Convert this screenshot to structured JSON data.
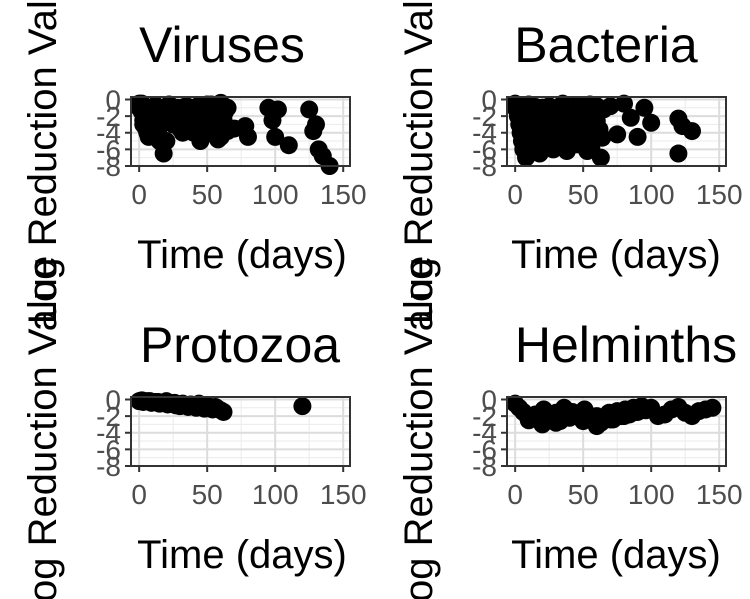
{
  "chart_data": [
    {
      "type": "scatter",
      "title": "Viruses",
      "xlabel": "Time (days)",
      "ylabel": "Log Reduction Value",
      "xlim": [
        -6,
        155
      ],
      "ylim": [
        -8,
        0.3
      ],
      "xticks": [
        0,
        50,
        100,
        150
      ],
      "yticks": [
        0,
        -2,
        -4,
        -6,
        -8
      ],
      "grid": true,
      "series": [
        {
          "x": [
            0,
            2,
            3,
            5,
            7,
            8,
            10,
            12,
            14,
            15,
            18,
            20,
            22,
            25,
            28,
            30,
            32,
            35,
            38,
            40,
            42,
            45,
            48,
            50,
            52,
            55,
            58,
            60,
            62,
            65,
            0,
            3,
            6,
            10,
            15,
            20,
            25,
            30,
            35,
            40,
            45,
            50,
            55,
            60,
            65,
            2,
            8,
            12,
            18,
            22,
            28,
            33,
            38,
            43,
            48,
            53,
            58,
            63,
            70,
            78,
            80,
            95,
            98,
            100,
            102,
            110,
            125,
            128,
            130,
            132,
            135,
            140
          ],
          "y": [
            -0.5,
            -1.5,
            -2.5,
            -3.5,
            -4.5,
            -1,
            -2,
            -3,
            -4,
            -5,
            -6.5,
            -1.5,
            -2.5,
            -3,
            -1,
            -2,
            -4,
            -0.8,
            -2.8,
            -3.5,
            -1.2,
            -2.2,
            -4.2,
            -0.6,
            -1.8,
            -3.2,
            -4.8,
            -0.4,
            -2.4,
            -3.8,
            -1,
            -3,
            -4,
            -2,
            -4.5,
            -5,
            -1.5,
            -3.5,
            -2,
            -4,
            -5,
            -1,
            -2.5,
            -4.5,
            -1,
            -0.5,
            -1,
            -0.7,
            -1.3,
            -0.6,
            -1.1,
            -0.9,
            -1.4,
            -0.8,
            -1.2,
            -0.6,
            -1,
            -1.5,
            -3.5,
            -3.2,
            -4.5,
            -1,
            -2.5,
            -4.5,
            -1.2,
            -5.5,
            -1.2,
            -3.8,
            -3,
            -6,
            -6.8,
            -8
          ]
        }
      ]
    },
    {
      "type": "scatter",
      "title": "Bacteria",
      "xlabel": "Time (days)",
      "ylabel": "Log Reduction Value",
      "xlim": [
        -6,
        155
      ],
      "ylim": [
        -8,
        0.3
      ],
      "xticks": [
        0,
        50,
        100,
        150
      ],
      "yticks": [
        0,
        -2,
        -4,
        -6,
        -8
      ],
      "grid": true,
      "series": [
        {
          "x": [
            0,
            2,
            3,
            4,
            5,
            6,
            8,
            10,
            12,
            14,
            15,
            16,
            18,
            20,
            22,
            24,
            25,
            27,
            28,
            30,
            32,
            34,
            35,
            36,
            38,
            40,
            42,
            44,
            45,
            46,
            48,
            50,
            52,
            54,
            55,
            56,
            58,
            60,
            62,
            64,
            0,
            5,
            10,
            15,
            20,
            25,
            30,
            35,
            40,
            45,
            50,
            55,
            60,
            65,
            70,
            3,
            8,
            13,
            18,
            23,
            28,
            33,
            43,
            53,
            63,
            75,
            80,
            85,
            90,
            95,
            100,
            120,
            123,
            130,
            120
          ],
          "y": [
            -1,
            -2,
            -3,
            -4,
            -5,
            -6,
            -7,
            -1.5,
            -2.5,
            -3.5,
            -4.5,
            -5.5,
            -6.5,
            -1,
            -2,
            -3,
            -4,
            -5,
            -6,
            -1.2,
            -2.2,
            -3.2,
            -4.2,
            -5.2,
            -6.2,
            -1.4,
            -2.4,
            -3.4,
            -4.4,
            -5.4,
            -0.8,
            -1.8,
            -2.8,
            -3.8,
            -4.8,
            -5.8,
            -1.6,
            -2.6,
            -3.6,
            -4.6,
            -0.5,
            -0.7,
            -0.6,
            -0.9,
            -1,
            -0.8,
            -1.1,
            -0.5,
            -0.9,
            -0.7,
            -1,
            -0.6,
            -0.8,
            -1.2,
            -0.8,
            -2,
            -3,
            -2.5,
            -3.5,
            -2.2,
            -3.2,
            -2.8,
            -3.8,
            -6.2,
            -7,
            -4.2,
            -0.5,
            -2.2,
            -4.5,
            -1,
            -2.8,
            -2.3,
            -3.2,
            -3.8,
            -6.5
          ]
        }
      ]
    },
    {
      "type": "scatter",
      "title": "Protozoa",
      "xlabel": "Time (days)",
      "ylabel": "Log Reduction Value",
      "xlim": [
        -6,
        155
      ],
      "ylim": [
        -8,
        0.3
      ],
      "xticks": [
        0,
        50,
        100,
        150
      ],
      "yticks": [
        0,
        -2,
        -4,
        -6,
        -8
      ],
      "grid": true,
      "series": [
        {
          "x": [
            0,
            3,
            6,
            9,
            12,
            15,
            18,
            21,
            24,
            27,
            30,
            33,
            36,
            39,
            42,
            45,
            48,
            51,
            54,
            57,
            60,
            62,
            2,
            8,
            14,
            20,
            26,
            32,
            38,
            44,
            50,
            56,
            120
          ],
          "y": [
            -0.2,
            -0.3,
            -0.2,
            -0.4,
            -0.3,
            -0.5,
            -0.4,
            -0.6,
            -0.5,
            -0.7,
            -0.8,
            -0.6,
            -0.9,
            -0.7,
            -1,
            -0.8,
            -1.1,
            -0.9,
            -1.2,
            -1,
            -1.3,
            -1.5,
            -0.1,
            -0.2,
            -0.3,
            -0.2,
            -0.4,
            -0.5,
            -0.6,
            -0.5,
            -0.7,
            -0.9,
            -0.8
          ]
        }
      ]
    },
    {
      "type": "scatter",
      "title": "Helminths",
      "xlabel": "Time (days)",
      "ylabel": "Log Reduction Value",
      "xlim": [
        -6,
        155
      ],
      "ylim": [
        -8,
        0.3
      ],
      "xticks": [
        0,
        50,
        100,
        150
      ],
      "yticks": [
        0,
        -2,
        -4,
        -6,
        -8
      ],
      "grid": true,
      "series": [
        {
          "x": [
            0,
            3,
            6,
            9,
            12,
            15,
            18,
            21,
            24,
            27,
            30,
            33,
            36,
            39,
            42,
            45,
            48,
            51,
            54,
            57,
            60,
            63,
            66,
            69,
            72,
            75,
            78,
            81,
            84,
            87,
            90,
            93,
            96,
            100,
            105,
            110,
            115,
            120,
            125,
            130,
            135,
            140,
            145,
            10,
            20,
            30,
            40,
            50,
            60,
            70,
            80
          ],
          "y": [
            -0.5,
            -1,
            -1.5,
            -2,
            -2.2,
            -1.8,
            -2.5,
            -1.2,
            -2,
            -2.4,
            -1.6,
            -2.6,
            -1,
            -2.1,
            -1.5,
            -1.8,
            -2.2,
            -1.2,
            -1.9,
            -2.4,
            -2,
            -2.8,
            -2.2,
            -1.6,
            -2.4,
            -1.4,
            -2,
            -1.2,
            -1.8,
            -1,
            -1.5,
            -0.8,
            -1.3,
            -1,
            -2,
            -1.8,
            -1.2,
            -0.9,
            -1.6,
            -2,
            -1.4,
            -1.2,
            -1,
            -2.5,
            -3,
            -2.8,
            -2.2,
            -2.6,
            -3.2,
            -2.4,
            -2
          ]
        }
      ]
    }
  ]
}
